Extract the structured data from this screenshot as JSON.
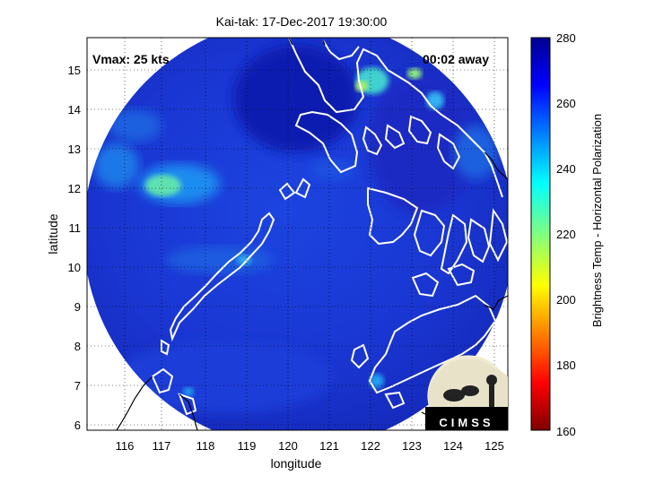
{
  "title": "Kai-tak: 17-Dec-2017 19:30:00",
  "annotations": {
    "vmax": "Vmax: 25 kts",
    "time_away": "00:02 away"
  },
  "axes": {
    "xlabel": "longitude",
    "ylabel": "latitude",
    "xlim": [
      115,
      125.3
    ],
    "ylim": [
      5.8,
      15.8
    ],
    "xticks": [
      "116",
      "117",
      "118",
      "119",
      "120",
      "121",
      "122",
      "123",
      "124",
      "125"
    ],
    "yticks": [
      "6",
      "7",
      "8",
      "9",
      "10",
      "11",
      "12",
      "13",
      "14",
      "15"
    ],
    "grid": "dotted"
  },
  "colorbar": {
    "label": "Brightness Temp - Horizontal Polarization",
    "ticks": [
      "280",
      "260",
      "240",
      "220",
      "200",
      "180",
      "160"
    ],
    "range": [
      160,
      280
    ],
    "colormap": "jet"
  },
  "logo": {
    "text": "CIMSS"
  },
  "colors": {
    "field_base": "#1a3ad8",
    "coast": "#ffffff",
    "outside_coast": "#000000"
  }
}
